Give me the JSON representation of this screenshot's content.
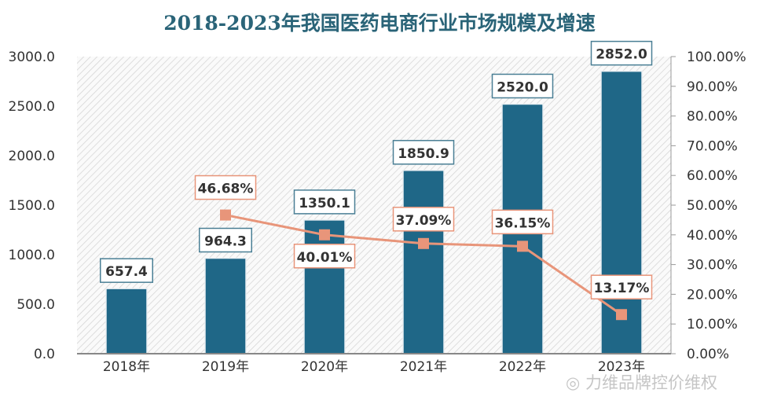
{
  "chart_data": {
    "type": "bar+line",
    "title": "2018-2023年我国医药电商行业市场规模及增速",
    "categories": [
      "2018年",
      "2019年",
      "2020年",
      "2021年",
      "2022年",
      "2023年"
    ],
    "series": [
      {
        "type": "bar",
        "values": [
          657.4,
          964.3,
          1350.1,
          1850.9,
          2520.0,
          2852.0
        ],
        "labels": [
          "657.4",
          "964.3",
          "1350.1",
          "1850.9",
          "2520.0",
          "2852.0"
        ],
        "color": "#1f6787",
        "axis": "left"
      },
      {
        "type": "line",
        "values": [
          null,
          46.68,
          40.01,
          37.09,
          36.15,
          13.17
        ],
        "labels": [
          "",
          "46.68%",
          "40.01%",
          "37.09%",
          "36.15%",
          "13.17%"
        ],
        "color": "#e8957a",
        "axis": "right"
      }
    ],
    "y_left": {
      "lim": [
        0,
        3000
      ],
      "ticks": [
        "0.0",
        "500.0",
        "1000.0",
        "1500.0",
        "2000.0",
        "2500.0",
        "3000.0"
      ]
    },
    "y_right": {
      "lim": [
        0,
        100
      ],
      "ticks": [
        "0.00%",
        "10.00%",
        "20.00%",
        "30.00%",
        "40.00%",
        "50.00%",
        "60.00%",
        "70.00%",
        "80.00%",
        "90.00%",
        "100.00%"
      ]
    },
    "grid": false,
    "background": "diagonal hatch"
  },
  "watermark": "力维品牌控价维权"
}
